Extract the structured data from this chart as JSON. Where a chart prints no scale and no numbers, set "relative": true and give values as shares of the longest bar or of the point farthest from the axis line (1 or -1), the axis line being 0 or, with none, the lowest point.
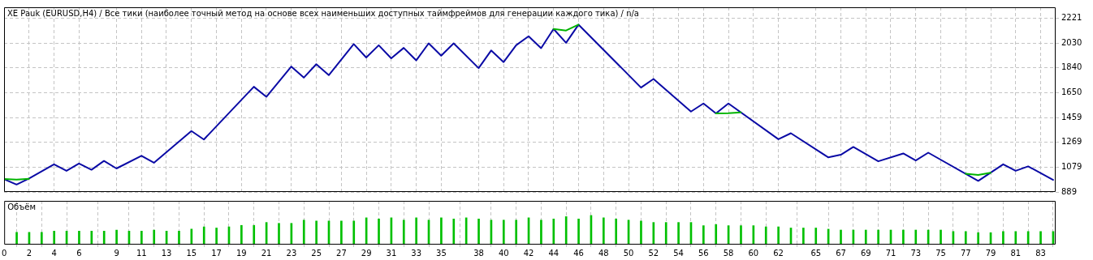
{
  "chart_data": [
    {
      "type": "line",
      "title": "XE Pauk (EURUSD,H4) / Все тики (наиболее точный метод на основе всех наименьших доступных таймфреймов для генерации каждого тика) / n/a",
      "series": [
        {
          "color": "#0a0aa5",
          "x": [
            0,
            1,
            2,
            4,
            5,
            6,
            7,
            8,
            9,
            11,
            12,
            15,
            16,
            20,
            21,
            23,
            24,
            25,
            26,
            28,
            29,
            30,
            31,
            32,
            33,
            34,
            35,
            36,
            38,
            39,
            40,
            41,
            42,
            43,
            44,
            45,
            46,
            51,
            52,
            55,
            56,
            57,
            58,
            62,
            63,
            66,
            67,
            68,
            70,
            72,
            73,
            74,
            78,
            80,
            81,
            82,
            84
          ],
          "values": [
            988,
            946,
            992,
            1101,
            1051,
            1107,
            1059,
            1127,
            1069,
            1166,
            1113,
            1356,
            1291,
            1695,
            1618,
            1850,
            1765,
            1868,
            1784,
            2022,
            1919,
            2013,
            1913,
            1993,
            1897,
            2028,
            1933,
            2028,
            1838,
            1973,
            1884,
            2013,
            2082,
            1991,
            2138,
            2032,
            2171,
            1689,
            1755,
            1505,
            1567,
            1491,
            1567,
            1293,
            1339,
            1154,
            1174,
            1234,
            1124,
            1184,
            1130,
            1190,
            974,
            1101,
            1051,
            1085,
            982
          ]
        },
        {
          "color": "#00b400",
          "x": [
            0,
            1,
            2,
            3,
            44,
            45,
            46,
            47,
            57,
            58,
            59,
            60,
            77,
            78,
            79
          ],
          "values": [
            988,
            983,
            990,
            null,
            2138,
            2126,
            2171,
            null,
            1491,
            1493,
            1499,
            null,
            1028,
            1020,
            1037
          ]
        }
      ],
      "xlim": [
        0,
        84.2
      ],
      "xticks": [
        0,
        2,
        4,
        6,
        9,
        11,
        13,
        15,
        17,
        19,
        21,
        23,
        25,
        27,
        29,
        31,
        33,
        35,
        38,
        40,
        42,
        44,
        46,
        48,
        50,
        52,
        54,
        56,
        58,
        60,
        62,
        65,
        67,
        69,
        71,
        73,
        75,
        77,
        79,
        81,
        83
      ],
      "ylim": [
        889,
        2304
      ],
      "yticks": [
        889,
        1079,
        1269,
        1459,
        1650,
        1840,
        2030,
        2221
      ],
      "grid": true,
      "tick_labels": "y"
    },
    {
      "type": "bar",
      "title": "Объём",
      "relative": true,
      "color": "#00c000",
      "x": [
        1,
        2,
        3,
        4,
        5,
        6,
        7,
        8,
        9,
        10,
        11,
        12,
        13,
        14,
        15,
        16,
        17,
        18,
        19,
        20,
        21,
        22,
        23,
        24,
        25,
        26,
        27,
        28,
        29,
        30,
        31,
        32,
        33,
        34,
        35,
        36,
        37,
        38,
        39,
        40,
        41,
        42,
        43,
        44,
        45,
        46,
        47,
        48,
        49,
        50,
        51,
        52,
        53,
        54,
        55,
        56,
        57,
        58,
        59,
        60,
        61,
        62,
        63,
        64,
        65,
        66,
        67,
        68,
        69,
        70,
        71,
        72,
        73,
        74,
        75,
        76,
        77,
        78,
        79,
        80,
        81,
        82,
        83,
        84
      ],
      "values": [
        0.42,
        0.42,
        0.42,
        0.46,
        0.46,
        0.46,
        0.46,
        0.46,
        0.5,
        0.46,
        0.46,
        0.5,
        0.46,
        0.46,
        0.53,
        0.61,
        0.57,
        0.61,
        0.66,
        0.66,
        0.76,
        0.73,
        0.73,
        0.84,
        0.81,
        0.81,
        0.81,
        0.81,
        0.92,
        0.88,
        0.92,
        0.84,
        0.92,
        0.84,
        0.92,
        0.88,
        0.92,
        0.88,
        0.84,
        0.84,
        0.84,
        0.92,
        0.84,
        0.88,
        0.96,
        0.88,
        1,
        0.92,
        0.88,
        0.84,
        0.81,
        0.76,
        0.76,
        0.76,
        0.76,
        0.65,
        0.69,
        0.65,
        0.65,
        0.65,
        0.61,
        0.61,
        0.57,
        0.57,
        0.57,
        0.53,
        0.5,
        0.5,
        0.5,
        0.5,
        0.5,
        0.5,
        0.5,
        0.5,
        0.5,
        0.45,
        0.45,
        0.41,
        0.41,
        0.45,
        0.45,
        0.45,
        0.45,
        0.45
      ],
      "xlim": [
        0,
        84.2
      ],
      "xticks": [
        0,
        2,
        4,
        6,
        9,
        11,
        13,
        15,
        17,
        19,
        21,
        23,
        25,
        27,
        29,
        31,
        33,
        35,
        38,
        40,
        42,
        44,
        46,
        48,
        50,
        52,
        54,
        56,
        58,
        60,
        62,
        65,
        67,
        69,
        71,
        73,
        75,
        77,
        79,
        81,
        83
      ],
      "grid": "x"
    }
  ]
}
